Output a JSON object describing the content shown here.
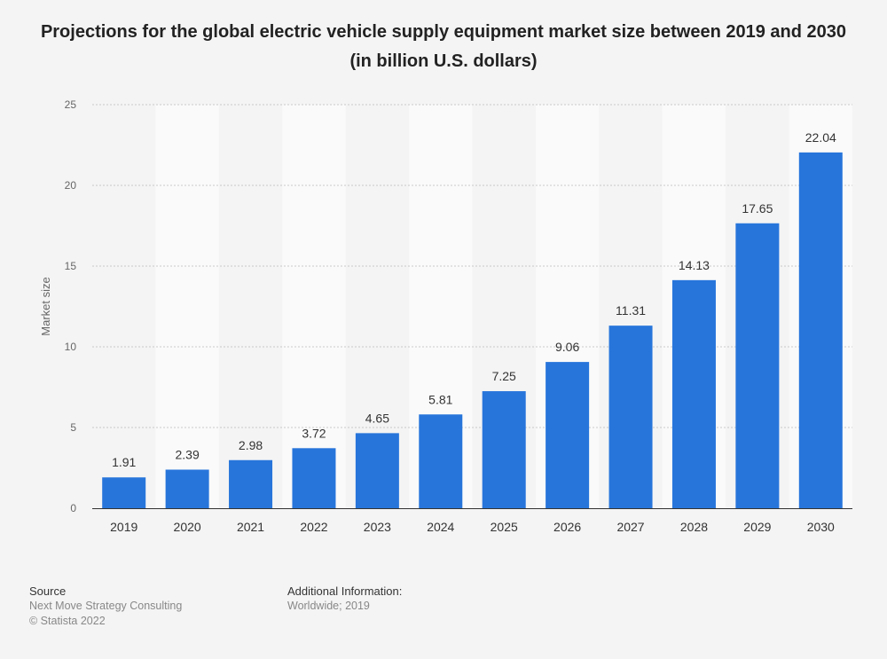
{
  "chart_data": {
    "type": "bar",
    "title": "Projections for the global electric vehicle supply equipment market size between 2019 and 2030 (in billion U.S. dollars)",
    "ylabel": "Market size",
    "xlabel": "",
    "categories": [
      "2019",
      "2020",
      "2021",
      "2022",
      "2023",
      "2024",
      "2025",
      "2026",
      "2027",
      "2028",
      "2029",
      "2030"
    ],
    "values": [
      1.91,
      2.39,
      2.98,
      3.72,
      4.65,
      5.81,
      7.25,
      9.06,
      11.31,
      14.13,
      17.65,
      22.04
    ],
    "value_labels": [
      "1.91",
      "2.39",
      "2.98",
      "3.72",
      "4.65",
      "5.81",
      "7.25",
      "9.06",
      "11.31",
      "14.13",
      "17.65",
      "22.04"
    ],
    "ylim": [
      0,
      25
    ],
    "yticks": [
      "0",
      "5",
      "10",
      "15",
      "20",
      "25"
    ],
    "grid": true,
    "bar_color": "#2775db"
  },
  "footer": {
    "source_heading": "Source",
    "source_line1": "Next Move Strategy Consulting",
    "source_line2": "© Statista 2022",
    "info_heading": "Additional Information:",
    "info_line1": "Worldwide; 2019"
  }
}
